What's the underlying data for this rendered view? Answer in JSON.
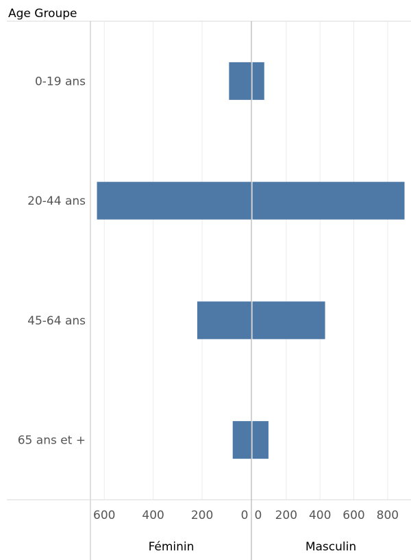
{
  "chart_data": {
    "type": "bar",
    "orientation": "horizontal",
    "layout": "diverging-butterfly",
    "row_header": "Age Groupe",
    "categories": [
      "0-19 ans",
      "20-44 ans",
      "45-64 ans",
      "65 ans et +"
    ],
    "series": [
      {
        "name": "Féminin",
        "values": [
          90,
          630,
          220,
          75
        ],
        "axis_ticks": [
          "600",
          "400",
          "200",
          "0"
        ],
        "xlim": [
          0,
          660
        ]
      },
      {
        "name": "Masculin",
        "values": [
          70,
          900,
          430,
          95
        ],
        "axis_ticks": [
          "0",
          "200",
          "400",
          "600",
          "800"
        ],
        "xlim": [
          0,
          905
        ]
      }
    ],
    "bar_color": "#4e79a7",
    "grid": true,
    "legend": "none"
  }
}
